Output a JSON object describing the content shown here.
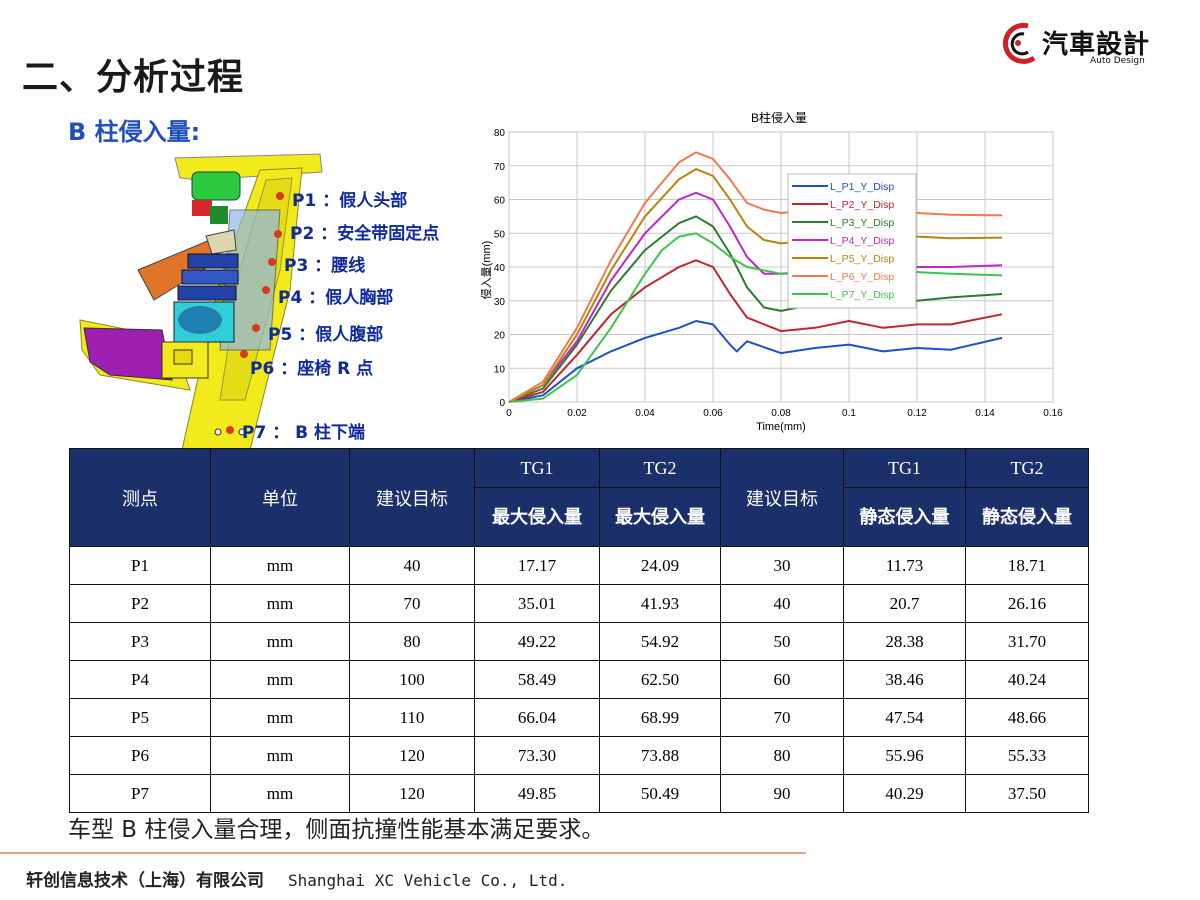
{
  "page": {
    "title": "二、分析过程",
    "section_label": "B 柱侵入量:",
    "summary": "车型 B 柱侵入量合理，侧面抗撞性能基本满足要求。",
    "footer_cn": "轩创信息技术（上海）有限公司",
    "footer_en": "Shanghai XC Vehicle Co., Ltd."
  },
  "logo": {
    "brand": "汽車設計",
    "sub": "Auto Design"
  },
  "illustration": {
    "points": [
      {
        "id": "P1",
        "text": "P1 ：假人头部"
      },
      {
        "id": "P2",
        "text": "P2 ：安全带固定点"
      },
      {
        "id": "P3",
        "text": "P3 ：腰线"
      },
      {
        "id": "P4",
        "text": "P4 ：假人胸部"
      },
      {
        "id": "P5",
        "text": "P5 ：假人腹部"
      },
      {
        "id": "P6",
        "text": "P6 ：座椅 R 点"
      },
      {
        "id": "P7",
        "text": "P7 ： B 柱下端"
      }
    ]
  },
  "chart_data": {
    "type": "line",
    "title": "B柱侵入量",
    "xlabel": "Time(mm)",
    "ylabel": "侵入量(mm)",
    "xlim": [
      0,
      0.16
    ],
    "ylim": [
      0,
      80
    ],
    "xticks": [
      "0",
      "0.02",
      "0.04",
      "0.06",
      "0.08",
      "0.1",
      "0.12",
      "0.14",
      "0.16"
    ],
    "yticks": [
      "0",
      "10",
      "20",
      "30",
      "40",
      "50",
      "60",
      "70",
      "80"
    ],
    "grid": true,
    "legend_position": "right-center",
    "series": [
      {
        "name": "L_P1_Y_Disp",
        "color": "#1f4fcc",
        "x": [
          0,
          0.01,
          0.02,
          0.03,
          0.04,
          0.05,
          0.055,
          0.06,
          0.065,
          0.067,
          0.07,
          0.08,
          0.09,
          0.1,
          0.11,
          0.12,
          0.13,
          0.145
        ],
        "y": [
          0,
          2,
          10,
          15,
          19,
          22,
          24,
          23,
          17,
          15,
          18,
          14.5,
          16,
          17,
          15,
          16,
          15.5,
          19
        ]
      },
      {
        "name": "L_P2_Y_Disp",
        "color": "#c0262d",
        "x": [
          0,
          0.01,
          0.02,
          0.03,
          0.04,
          0.05,
          0.055,
          0.06,
          0.065,
          0.07,
          0.08,
          0.09,
          0.1,
          0.11,
          0.12,
          0.13,
          0.145
        ],
        "y": [
          0,
          3,
          14,
          26,
          34,
          40,
          42,
          40,
          32,
          25,
          21,
          22,
          24,
          22,
          23,
          23,
          26
        ]
      },
      {
        "name": "L_P3_Y_Disp",
        "color": "#2f7a2e",
        "x": [
          0,
          0.01,
          0.02,
          0.03,
          0.04,
          0.05,
          0.055,
          0.06,
          0.065,
          0.07,
          0.075,
          0.08,
          0.09,
          0.1,
          0.11,
          0.12,
          0.13,
          0.145
        ],
        "y": [
          0,
          4,
          17,
          33,
          45,
          53,
          55,
          52,
          44,
          34,
          28,
          27,
          29,
          31,
          30,
          30,
          31,
          32
        ]
      },
      {
        "name": "L_P4_Y_Disp",
        "color": "#c026c7",
        "x": [
          0,
          0.01,
          0.02,
          0.03,
          0.04,
          0.05,
          0.055,
          0.06,
          0.065,
          0.07,
          0.075,
          0.08,
          0.09,
          0.1,
          0.11,
          0.12,
          0.13,
          0.145
        ],
        "y": [
          0,
          5,
          18,
          36,
          50,
          60,
          62,
          60,
          52,
          43,
          38,
          38,
          39,
          40,
          40,
          40,
          40,
          40.5
        ]
      },
      {
        "name": "L_P5_Y_Disp",
        "color": "#b5860e",
        "x": [
          0,
          0.01,
          0.02,
          0.03,
          0.04,
          0.05,
          0.055,
          0.06,
          0.065,
          0.07,
          0.075,
          0.08,
          0.09,
          0.1,
          0.11,
          0.12,
          0.13,
          0.145
        ],
        "y": [
          0,
          5,
          20,
          39,
          55,
          66,
          69,
          67,
          60,
          52,
          48,
          47,
          48,
          49,
          49,
          49,
          48.5,
          48.7
        ]
      },
      {
        "name": "L_P6_Y_Disp",
        "color": "#f07a50",
        "x": [
          0,
          0.01,
          0.02,
          0.03,
          0.04,
          0.05,
          0.055,
          0.06,
          0.065,
          0.07,
          0.075,
          0.08,
          0.09,
          0.1,
          0.11,
          0.12,
          0.13,
          0.145
        ],
        "y": [
          0,
          6,
          22,
          42,
          59,
          71,
          74,
          72,
          66,
          59,
          57,
          56,
          57,
          57,
          56,
          56,
          55.5,
          55.3
        ]
      },
      {
        "name": "L_P7_Y_Disp",
        "color": "#3ec44a",
        "x": [
          0,
          0.01,
          0.02,
          0.03,
          0.04,
          0.045,
          0.05,
          0.055,
          0.06,
          0.065,
          0.07,
          0.08,
          0.09,
          0.1,
          0.11,
          0.12,
          0.13,
          0.145
        ],
        "y": [
          0,
          1,
          8,
          22,
          38,
          45,
          49,
          50,
          47,
          43,
          40,
          38,
          38,
          39,
          39,
          38.5,
          38,
          37.5
        ]
      }
    ]
  },
  "table": {
    "headers": {
      "point": "测点",
      "unit": "单位",
      "target1": "建议目标",
      "tg1_a": "TG1",
      "tg2_a": "TG2",
      "max1": "最大侵入量",
      "max2": "最大侵入量",
      "target2": "建议目标",
      "tg1_b": "TG1",
      "tg2_b": "TG2",
      "static1": "静态侵入量",
      "static2": "静态侵入量"
    },
    "rows": [
      [
        "P1",
        "mm",
        "40",
        "17.17",
        "24.09",
        "30",
        "11.73",
        "18.71"
      ],
      [
        "P2",
        "mm",
        "70",
        "35.01",
        "41.93",
        "40",
        "20.7",
        "26.16"
      ],
      [
        "P3",
        "mm",
        "80",
        "49.22",
        "54.92",
        "50",
        "28.38",
        "31.70"
      ],
      [
        "P4",
        "mm",
        "100",
        "58.49",
        "62.50",
        "60",
        "38.46",
        "40.24"
      ],
      [
        "P5",
        "mm",
        "110",
        "66.04",
        "68.99",
        "70",
        "47.54",
        "48.66"
      ],
      [
        "P6",
        "mm",
        "120",
        "73.30",
        "73.88",
        "80",
        "55.96",
        "55.33"
      ],
      [
        "P7",
        "mm",
        "120",
        "49.85",
        "50.49",
        "90",
        "40.29",
        "37.50"
      ]
    ]
  }
}
